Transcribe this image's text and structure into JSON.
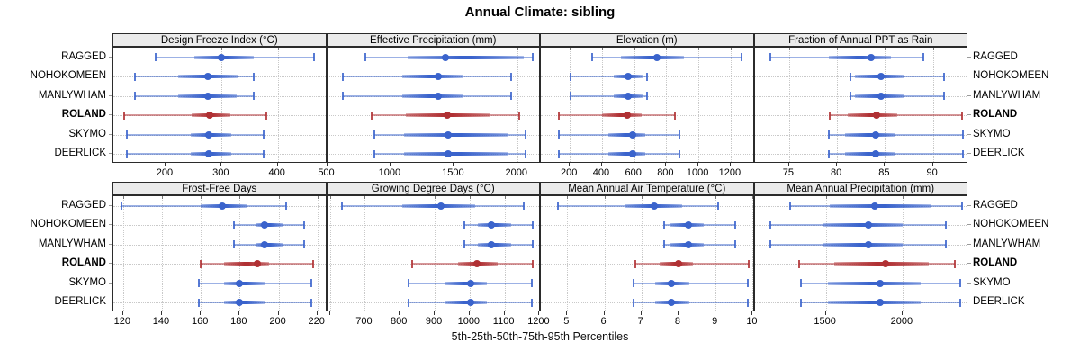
{
  "title": "Annual Climate: sibling",
  "caption": "5th-25th-50th-75th-95th Percentiles",
  "colors": {
    "series": "#3A63CC",
    "highlight": "#B03033",
    "strip_bg": "#EBEBEB",
    "grid": "#C9C9C9",
    "border": "#2B2B2B"
  },
  "chart_data": {
    "type": "dotplot-interval-trellis",
    "title": "Annual Climate: sibling",
    "caption": "5th-25th-50th-75th-95th Percentiles",
    "percentile_labels": [
      "5th",
      "25th",
      "50th",
      "75th",
      "95th"
    ],
    "sites": [
      "RAGGED",
      "NOHOKOMEEN",
      "MANLYWHAM",
      "ROLAND",
      "SKYMO",
      "DEERLICK"
    ],
    "highlight_site": "ROLAND",
    "panels": [
      {
        "title": "Design Freeze Index (°C)",
        "xlim": [
          107,
          488
        ],
        "ticks": [
          200,
          300,
          400
        ],
        "tick_labels": [
          "200",
          "300",
          "400"
        ],
        "series": [
          {
            "site": "RAGGED",
            "p": [
              182,
              251,
              299,
              358,
              464
            ]
          },
          {
            "site": "NOHOKOMEEN",
            "p": [
              145,
              222,
              275,
              328,
              358
            ]
          },
          {
            "site": "MANLYWHAM",
            "p": [
              145,
              222,
              275,
              326,
              357
            ]
          },
          {
            "site": "ROLAND",
            "p": [
              127,
              246,
              278,
              315,
              379
            ]
          },
          {
            "site": "SKYMO",
            "p": [
              131,
              245,
              277,
              317,
              375
            ]
          },
          {
            "site": "DEERLICK",
            "p": [
              131,
              245,
              277,
              317,
              375
            ]
          }
        ]
      },
      {
        "title": "Effective Precipitation (mm)",
        "xlim": [
          500,
          2186
        ],
        "ticks": [
          500,
          1000,
          1500,
          2000
        ],
        "tick_labels": [
          "500",
          "1000",
          "1500",
          "2000"
        ],
        "series": [
          {
            "site": "RAGGED",
            "p": [
              800,
              1135,
              1435,
              2050,
              2125
            ]
          },
          {
            "site": "NOHOKOMEEN",
            "p": [
              625,
              1090,
              1375,
              1565,
              1950
            ]
          },
          {
            "site": "MANLYWHAM",
            "p": [
              625,
              1090,
              1375,
              1565,
              1950
            ]
          },
          {
            "site": "ROLAND",
            "p": [
              850,
              1120,
              1445,
              1790,
              2015
            ]
          },
          {
            "site": "SKYMO",
            "p": [
              875,
              1110,
              1455,
              1920,
              2065
            ]
          },
          {
            "site": "DEERLICK",
            "p": [
              875,
              1110,
              1455,
              1920,
              2065
            ]
          }
        ]
      },
      {
        "title": "Elevation (m)",
        "xlim": [
          20,
          1349
        ],
        "ticks": [
          200,
          400,
          600,
          800,
          1000,
          1200
        ],
        "tick_labels": [
          "200",
          "400",
          "600",
          "800",
          "1000",
          "1200"
        ],
        "series": [
          {
            "site": "RAGGED",
            "p": [
              340,
              520,
              740,
              910,
              1270
            ]
          },
          {
            "site": "NOHOKOMEEN",
            "p": [
              205,
              475,
              560,
              655,
              680
            ]
          },
          {
            "site": "MANLYWHAM",
            "p": [
              205,
              475,
              560,
              655,
              680
            ]
          },
          {
            "site": "ROLAND",
            "p": [
              130,
              400,
              555,
              645,
              855
            ]
          },
          {
            "site": "SKYMO",
            "p": [
              130,
              440,
              590,
              670,
              880
            ]
          },
          {
            "site": "DEERLICK",
            "p": [
              130,
              440,
              590,
              670,
              880
            ]
          }
        ]
      },
      {
        "title": "Fraction of Annual PPT as Rain",
        "xlim": [
          71.4,
          93.7
        ],
        "ticks": [
          75,
          80,
          85,
          90
        ],
        "tick_labels": [
          "75",
          "80",
          "85",
          "90"
        ],
        "series": [
          {
            "site": "RAGGED",
            "p": [
              73.0,
              79.1,
              83.6,
              85.6,
              89.0
            ]
          },
          {
            "site": "NOHOKOMEEN",
            "p": [
              81.4,
              81.9,
              84.6,
              87.0,
              91.2
            ]
          },
          {
            "site": "MANLYWHAM",
            "p": [
              81.4,
              81.9,
              84.6,
              87.0,
              91.2
            ]
          },
          {
            "site": "ROLAND",
            "p": [
              79.2,
              81.1,
              84.1,
              86.3,
              93.0
            ]
          },
          {
            "site": "SKYMO",
            "p": [
              79.1,
              80.8,
              84.0,
              86.1,
              93.1
            ]
          },
          {
            "site": "DEERLICK",
            "p": [
              79.1,
              80.8,
              84.0,
              86.1,
              93.1
            ]
          }
        ]
      },
      {
        "title": "Frost-Free Days",
        "xlim": [
          115,
          225
        ],
        "ticks": [
          120,
          140,
          160,
          180,
          200,
          220
        ],
        "tick_labels": [
          "120",
          "140",
          "160",
          "180",
          "200",
          "220"
        ],
        "series": [
          {
            "site": "RAGGED",
            "p": [
              119,
              160,
              171,
              184,
              204
            ]
          },
          {
            "site": "NOHOKOMEEN",
            "p": [
              177,
              188,
              193,
              202,
              213
            ]
          },
          {
            "site": "MANLYWHAM",
            "p": [
              177,
              188,
              193,
              202,
              213
            ]
          },
          {
            "site": "ROLAND",
            "p": [
              160,
              172,
              189,
              195,
              218
            ]
          },
          {
            "site": "SKYMO",
            "p": [
              159,
              172,
              180,
              193,
              217
            ]
          },
          {
            "site": "DEERLICK",
            "p": [
              159,
              172,
              180,
              193,
              217
            ]
          }
        ]
      },
      {
        "title": "Growing Degree Days (°C)",
        "xlim": [
          592,
          1204
        ],
        "ticks": [
          600,
          700,
          800,
          900,
          1000,
          1100,
          1200
        ],
        "tick_labels": [
          "",
          "700",
          "800",
          "900",
          "1000",
          "1100",
          "1200"
        ],
        "series": [
          {
            "site": "RAGGED",
            "p": [
              635,
              806,
              919,
              1017,
              1156
            ]
          },
          {
            "site": "NOHOKOMEEN",
            "p": [
              985,
              1024,
              1063,
              1118,
              1180
            ]
          },
          {
            "site": "MANLYWHAM",
            "p": [
              985,
              1024,
              1063,
              1118,
              1180
            ]
          },
          {
            "site": "ROLAND",
            "p": [
              835,
              967,
              1020,
              1080,
              1180
            ]
          },
          {
            "site": "SKYMO",
            "p": [
              824,
              928,
              1002,
              1050,
              1179
            ]
          },
          {
            "site": "DEERLICK",
            "p": [
              824,
              928,
              1002,
              1050,
              1179
            ]
          }
        ]
      },
      {
        "title": "Mean Annual Air Temperature (°C)",
        "xlim": [
          4.29,
          10.05
        ],
        "ticks": [
          5,
          6,
          7,
          8,
          9,
          10
        ],
        "tick_labels": [
          "5",
          "6",
          "7",
          "8",
          "9",
          "10"
        ],
        "series": [
          {
            "site": "RAGGED",
            "p": [
              4.76,
              6.55,
              7.35,
              8.1,
              9.06
            ]
          },
          {
            "site": "NOHOKOMEEN",
            "p": [
              7.61,
              7.77,
              8.26,
              8.67,
              9.52
            ]
          },
          {
            "site": "MANLYWHAM",
            "p": [
              7.61,
              7.77,
              8.26,
              8.67,
              9.52
            ]
          },
          {
            "site": "ROLAND",
            "p": [
              6.84,
              7.49,
              8.0,
              8.38,
              9.89
            ]
          },
          {
            "site": "SKYMO",
            "p": [
              6.8,
              7.37,
              7.8,
              8.3,
              9.86
            ]
          },
          {
            "site": "DEERLICK",
            "p": [
              6.8,
              7.37,
              7.8,
              8.3,
              9.86
            ]
          }
        ]
      },
      {
        "title": "Mean Annual Precipitation (mm)",
        "xlim": [
          1036,
          2429
        ],
        "ticks": [
          1500,
          2000
        ],
        "tick_labels": [
          "1500",
          "2000"
        ],
        "series": [
          {
            "site": "RAGGED",
            "p": [
              1270,
              1525,
              1820,
              2180,
              2390
            ]
          },
          {
            "site": "NOHOKOMEEN",
            "p": [
              1140,
              1486,
              1780,
              2000,
              2280
            ]
          },
          {
            "site": "MANLYWHAM",
            "p": [
              1140,
              1486,
              1780,
              2000,
              2280
            ]
          },
          {
            "site": "ROLAND",
            "p": [
              1327,
              1555,
              1887,
              2170,
              2340
            ]
          },
          {
            "site": "SKYMO",
            "p": [
              1337,
              1516,
              1853,
              2120,
              2375
            ]
          },
          {
            "site": "DEERLICK",
            "p": [
              1337,
              1516,
              1853,
              2120,
              2375
            ]
          }
        ]
      }
    ]
  }
}
